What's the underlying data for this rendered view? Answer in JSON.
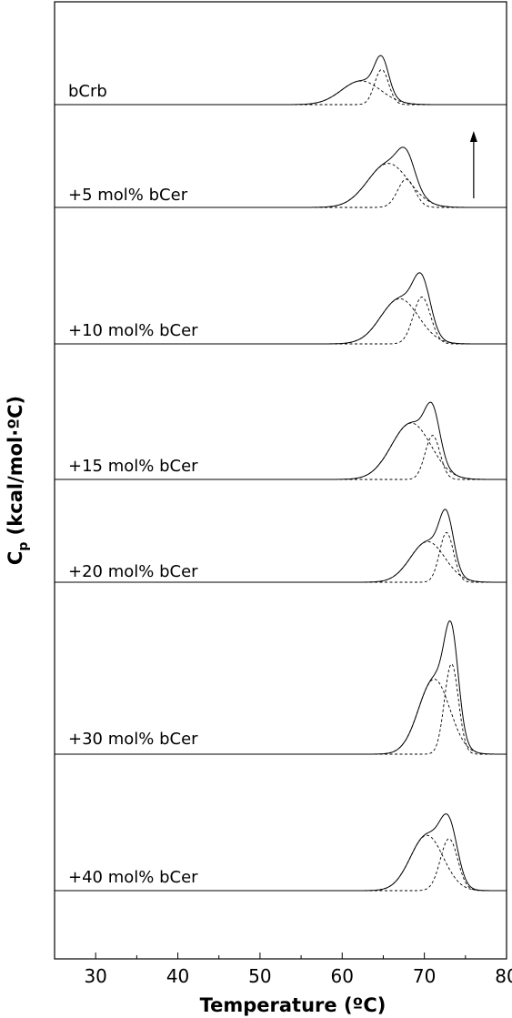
{
  "chart_data": {
    "type": "line",
    "xlabel": "Temperature (ºC)",
    "ylabel": "C",
    "ylabel_sub": "p",
    "ylabel_unit": " (kcal/mol·ºC)",
    "xlim": [
      25,
      80
    ],
    "xticks": [
      30,
      40,
      50,
      60,
      70,
      80
    ],
    "grid": false,
    "arrow_x": 76,
    "traces": [
      {
        "label": "bCrb",
        "size": "normal",
        "peaks": [
          {
            "c": 62.3,
            "h": 0.42,
            "w": 2.4
          },
          {
            "c": 64.8,
            "h": 0.62,
            "w": 0.85
          }
        ]
      },
      {
        "label": "+5 mol% bCer",
        "size": "normal",
        "peaks": [
          {
            "c": 65.6,
            "h": 0.78,
            "w": 2.5
          },
          {
            "c": 67.8,
            "h": 0.5,
            "w": 1.05
          }
        ]
      },
      {
        "label": "+10 mol% bCer",
        "size": "normal",
        "peaks": [
          {
            "c": 67.0,
            "h": 0.8,
            "w": 2.3
          },
          {
            "c": 69.7,
            "h": 0.83,
            "w": 1.05
          }
        ]
      },
      {
        "label": "+15 mol% bCer",
        "size": "normal",
        "peaks": [
          {
            "c": 68.4,
            "h": 1.0,
            "w": 2.4
          },
          {
            "c": 71.0,
            "h": 0.78,
            "w": 0.9
          }
        ]
      },
      {
        "label": "+20 mol% bCer",
        "size": "normal",
        "peaks": [
          {
            "c": 70.4,
            "h": 0.72,
            "w": 2.1
          },
          {
            "c": 72.7,
            "h": 0.88,
            "w": 0.85
          }
        ]
      },
      {
        "label": "+30 mol% bCer",
        "size": "large",
        "peaks": [
          {
            "c": 71.2,
            "h": 1.33,
            "w": 1.9
          },
          {
            "c": 73.3,
            "h": 1.6,
            "w": 0.85
          }
        ]
      },
      {
        "label": "+40 mol% bCer",
        "size": "normal",
        "peaks": [
          {
            "c": 70.3,
            "h": 0.98,
            "w": 2.0
          },
          {
            "c": 73.0,
            "h": 0.92,
            "w": 1.05
          }
        ]
      }
    ]
  }
}
